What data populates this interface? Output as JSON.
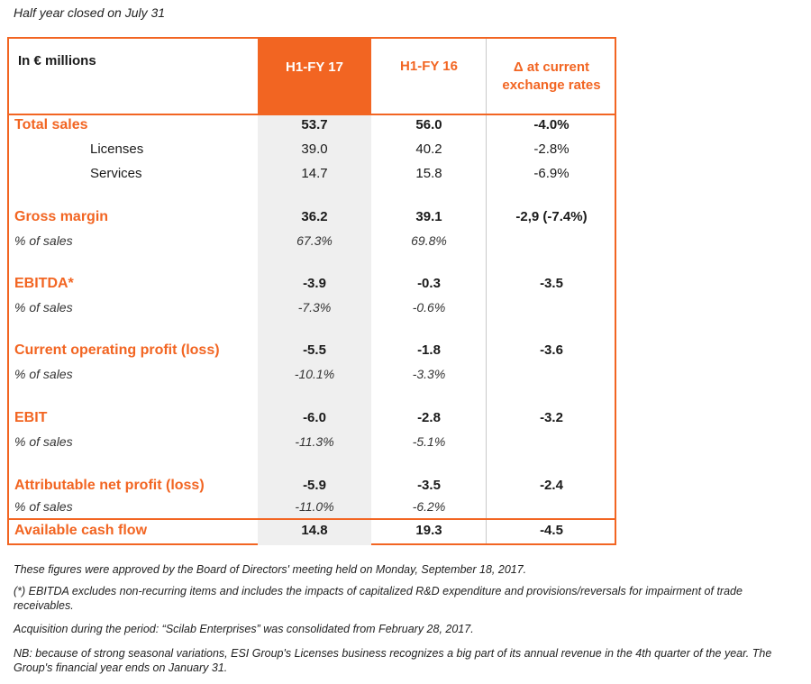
{
  "caption": "Half year closed on July 31",
  "header": {
    "label": "In € millions",
    "fy17": "H1-FY 17",
    "fy16": "H1-FY 16",
    "delta": "Δ at current exchange rates"
  },
  "rows": [
    {
      "label": "Total sales",
      "fy17": "53.7",
      "fy16": "56.0",
      "delta": "-4.0%"
    },
    {
      "label": "Licenses",
      "fy17": "39.0",
      "fy16": "40.2",
      "delta": "-2.8%"
    },
    {
      "label": "Services",
      "fy17": "14.7",
      "fy16": "15.8",
      "delta": "-6.9%"
    },
    {
      "label": "Gross margin",
      "fy17": "36.2",
      "fy16": "39.1",
      "delta": "-2,9 (-7.4%)"
    },
    {
      "label": "% of sales",
      "fy17": "67.3%",
      "fy16": "69.8%",
      "delta": ""
    },
    {
      "label": "EBITDA*",
      "fy17": "-3.9",
      "fy16": "-0.3",
      "delta": "-3.5"
    },
    {
      "label": "% of sales",
      "fy17": "-7.3%",
      "fy16": "-0.6%",
      "delta": ""
    },
    {
      "label": "Current operating profit (loss)",
      "fy17": "-5.5",
      "fy16": "-1.8",
      "delta": "-3.6"
    },
    {
      "label": "% of sales",
      "fy17": "-10.1%",
      "fy16": "-3.3%",
      "delta": ""
    },
    {
      "label": "EBIT",
      "fy17": "-6.0",
      "fy16": "-2.8",
      "delta": "-3.2"
    },
    {
      "label": "% of sales",
      "fy17": "-11.3%",
      "fy16": "-5.1%",
      "delta": ""
    },
    {
      "label": "Attributable net profit (loss)",
      "fy17": "-5.9",
      "fy16": "-3.5",
      "delta": "-2.4"
    },
    {
      "label": "% of sales",
      "fy17": "-11.0%",
      "fy16": "-6.2%",
      "delta": ""
    },
    {
      "label": "Available cash flow",
      "fy17": "14.8",
      "fy16": "19.3",
      "delta": "-4.5"
    }
  ],
  "notes": [
    "These figures were approved by the Board of Directors' meeting held on Monday, September 18, 2017.",
    "(*) EBITDA excludes non-recurring items and includes the impacts of capitalized R&D expenditure and provisions/reversals for impairment of trade receivables.",
    "Acquisition during the period: “Scilab Enterprises” was consolidated from February 28, 2017.",
    "NB: because of strong seasonal variations, ESI Group's Licenses business recognizes a big part of its annual revenue in the 4th quarter of the year. The Group's financial year ends on January 31."
  ],
  "colors": {
    "accent": "#f26522",
    "shade": "#efefef"
  }
}
